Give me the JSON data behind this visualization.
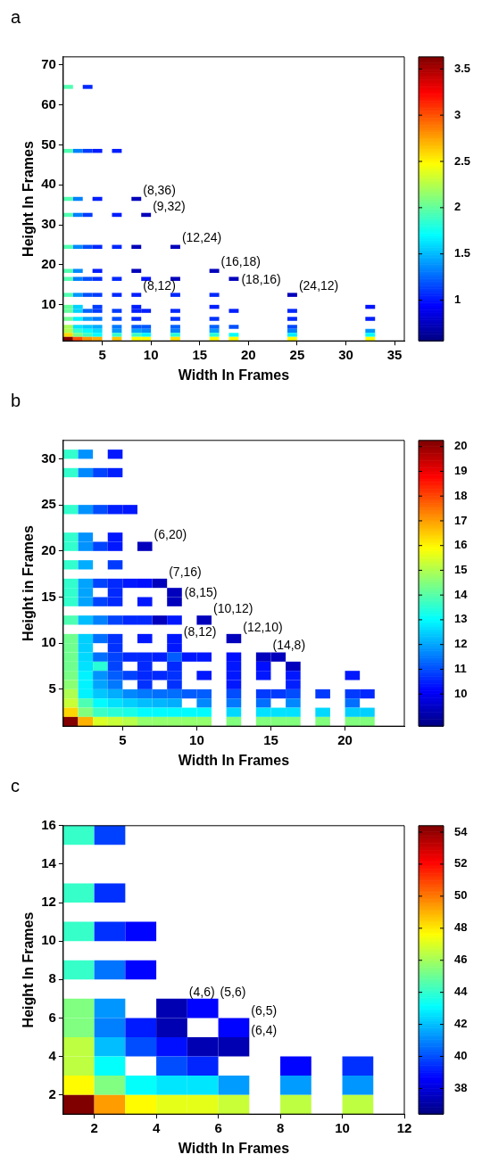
{
  "chart_data": [
    {
      "type": "scatter",
      "marker": "square",
      "title": "a",
      "xlabel": "Width In Frames",
      "ylabel": "Height In Frames",
      "xlim": [
        1,
        36
      ],
      "xticks": [
        5,
        10,
        15,
        20,
        25,
        30,
        35
      ],
      "ylim": [
        1,
        72
      ],
      "yticks": [
        10,
        20,
        30,
        40,
        50,
        60,
        70
      ],
      "clim": [
        0.56,
        3.63
      ],
      "cticks": [
        1,
        1.5,
        2,
        2.5,
        3,
        3.5
      ],
      "x": [
        1.5,
        3.5,
        1.5,
        2.5,
        3.5,
        4.5,
        6.5,
        1.5,
        2.5,
        4.5,
        8.5,
        1.5,
        2.5,
        3.5,
        6.5,
        9.5,
        1.5,
        2.5,
        3.5,
        4.5,
        6.5,
        8.5,
        12.5,
        1.5,
        2.5,
        4.5,
        8.5,
        16.5,
        1.5,
        2.5,
        3.5,
        4.5,
        6.5,
        9.5,
        12.5,
        18.5,
        1.5,
        2.5,
        3.5,
        4.5,
        6.5,
        8.5,
        12.5,
        16.5,
        24.5,
        1.5,
        2.5,
        4.5,
        8.5,
        16.5,
        32.5,
        1.5,
        2.5,
        3.5,
        4.5,
        6.5,
        8.5,
        9.5,
        12.5,
        18.5,
        24.5,
        1.5,
        2.5,
        3.5,
        4.5,
        6.5,
        8.5,
        12.5,
        16.5,
        24.5,
        32.5,
        1.5,
        2.5,
        3.5,
        4.5,
        6.5,
        8.5,
        9.5,
        12.5,
        16.5,
        18.5,
        24.5,
        1.5,
        2.5,
        3.5,
        4.5,
        6.5,
        8.5,
        9.5,
        12.5,
        16.5,
        24.5,
        32.5,
        1.5,
        2.5,
        3.5,
        4.5,
        6.5,
        8.5,
        9.5,
        12.5,
        16.5,
        18.5,
        24.5,
        32.5,
        1.5,
        2.5,
        3.5,
        4.5,
        6.5,
        8.5,
        9.5,
        12.5,
        16.5,
        18.5,
        24.5,
        32.5
      ],
      "values": [
        64.5,
        64.5,
        48.5,
        48.5,
        48.5,
        48.5,
        48.5,
        36.5,
        36.5,
        36.5,
        36.5,
        32.5,
        32.5,
        32.5,
        32.5,
        32.5,
        24.5,
        24.5,
        24.5,
        24.5,
        24.5,
        24.5,
        24.5,
        18.5,
        18.5,
        18.5,
        18.5,
        18.5,
        16.5,
        16.5,
        16.5,
        16.5,
        16.5,
        16.5,
        16.5,
        16.5,
        12.5,
        12.5,
        12.5,
        12.5,
        12.5,
        12.5,
        12.5,
        12.5,
        12.5,
        9.5,
        9.5,
        9.5,
        9.5,
        9.5,
        9.5,
        8.5,
        8.5,
        8.5,
        8.5,
        8.5,
        8.5,
        8.5,
        8.5,
        8.5,
        8.5,
        6.5,
        6.5,
        6.5,
        6.5,
        6.5,
        6.5,
        6.5,
        6.5,
        6.5,
        6.5,
        4.5,
        4.5,
        4.5,
        4.5,
        4.5,
        4.5,
        4.5,
        4.5,
        4.5,
        4.5,
        4.5,
        3.5,
        3.5,
        3.5,
        3.5,
        3.5,
        3.5,
        3.5,
        3.5,
        3.5,
        3.5,
        3.5,
        2.5,
        2.5,
        2.5,
        2.5,
        2.5,
        2.5,
        2.5,
        2.5,
        2.5,
        2.5,
        2.5,
        2.5,
        1.5,
        1.5,
        1.5,
        1.5,
        1.5,
        1.5,
        1.5,
        1.5,
        1.5,
        1.5,
        1.5,
        1.5
      ],
      "cvalues": [
        1.95,
        1.06,
        1.95,
        1.33,
        1.12,
        1.03,
        1.03,
        1.95,
        1.33,
        1.03,
        0.74,
        1.95,
        1.33,
        1.12,
        1.03,
        0.74,
        1.95,
        1.36,
        1.18,
        1.06,
        1.06,
        0.74,
        0.74,
        1.95,
        1.36,
        1.03,
        0.74,
        0.74,
        1.95,
        1.33,
        1.18,
        1.09,
        1.06,
        1.0,
        0.74,
        0.74,
        1.95,
        1.4,
        1.18,
        1.12,
        1.06,
        1.03,
        1.06,
        1.06,
        0.74,
        2.01,
        1.58,
        1.12,
        1.03,
        1.03,
        1.0,
        2.01,
        1.58,
        1.24,
        1.12,
        1.12,
        1.03,
        1.03,
        1.06,
        1.03,
        1.06,
        2.04,
        1.67,
        1.43,
        1.31,
        1.18,
        1.06,
        1.09,
        1.09,
        1.06,
        1.03,
        2.22,
        1.63,
        1.55,
        1.46,
        1.31,
        1.21,
        1.21,
        1.24,
        1.24,
        1.18,
        1.16,
        2.25,
        1.86,
        1.7,
        1.61,
        1.4,
        1.43,
        1.36,
        1.33,
        1.4,
        1.33,
        1.4,
        2.59,
        2.07,
        1.89,
        1.71,
        1.86,
        1.89,
        1.7,
        1.83,
        1.83,
        1.73,
        1.67,
        1.71,
        3.63,
        3.01,
        2.8,
        2.73,
        2.65,
        2.48,
        2.48,
        2.56,
        2.48,
        2.48,
        2.48,
        2.48
      ],
      "annotations": [
        {
          "text": "(8,36)",
          "x": 8.5,
          "y": 36.5
        },
        {
          "text": "(9,32)",
          "x": 9.5,
          "y": 32.5
        },
        {
          "text": "(12,24)",
          "x": 12.5,
          "y": 24.5
        },
        {
          "text": "(16,18)",
          "x": 16.5,
          "y": 18.5
        },
        {
          "text": "(18,16)",
          "x": 18.5,
          "y": 16.5
        },
        {
          "text": "(24,12)",
          "x": 24.5,
          "y": 12.5
        },
        {
          "text": "(8,12)",
          "x": 8.5,
          "y": 12.5
        }
      ]
    },
    {
      "type": "scatter",
      "marker": "square",
      "title": "b",
      "xlabel": "Width In Frames",
      "ylabel": "Height in Frames",
      "xlim": [
        1,
        24
      ],
      "xticks": [
        5,
        10,
        15,
        20
      ],
      "ylim": [
        1,
        32
      ],
      "yticks": [
        5,
        10,
        15,
        20,
        25,
        30
      ],
      "clim": [
        8.7,
        20.25
      ],
      "cticks": [
        10,
        11,
        12,
        13,
        14,
        15,
        16,
        17,
        18,
        19,
        20
      ],
      "x": [
        1.5,
        2.5,
        4.5,
        1.5,
        2.5,
        3.5,
        4.5,
        1.5,
        2.5,
        3.5,
        4.5,
        5.5,
        1.5,
        2.5,
        4.5,
        1.5,
        2.5,
        3.5,
        4.5,
        6.5,
        1.5,
        2.5,
        4.5,
        1.5,
        2.5,
        3.5,
        4.5,
        5.5,
        6.5,
        7.5,
        1.5,
        2.5,
        4.5,
        8.5,
        1.5,
        2.5,
        3.5,
        4.5,
        6.5,
        8.5,
        1.5,
        2.5,
        3.5,
        4.5,
        5.5,
        6.5,
        7.5,
        8.5,
        10.5,
        1.5,
        2.5,
        3.5,
        4.5,
        6.5,
        8.5,
        12.5,
        1.5,
        2.5,
        4.5,
        8.5,
        1.5,
        2.5,
        3.5,
        4.5,
        5.5,
        6.5,
        7.5,
        8.5,
        9.5,
        10.5,
        12.5,
        14.5,
        15.5,
        1.5,
        2.5,
        3.5,
        4.5,
        6.5,
        8.5,
        12.5,
        14.5,
        16.5,
        1.5,
        2.5,
        3.5,
        4.5,
        5.5,
        6.5,
        7.5,
        8.5,
        10.5,
        12.5,
        14.5,
        16.5,
        20.5,
        1.5,
        2.5,
        3.5,
        4.5,
        6.5,
        8.5,
        12.5,
        16.5,
        1.5,
        2.5,
        3.5,
        4.5,
        5.5,
        6.5,
        7.5,
        8.5,
        9.5,
        10.5,
        12.5,
        14.5,
        15.5,
        16.5,
        18.5,
        20.5,
        21.5,
        1.5,
        2.5,
        3.5,
        4.5,
        5.5,
        6.5,
        7.5,
        8.5,
        10.5,
        12.5,
        14.5,
        16.5,
        20.5,
        1.5,
        2.5,
        3.5,
        4.5,
        5.5,
        6.5,
        7.5,
        8.5,
        9.5,
        10.5,
        12.5,
        14.5,
        15.5,
        16.5,
        18.5,
        20.5,
        21.5,
        1.5,
        2.5,
        3.5,
        4.5,
        5.5,
        6.5,
        7.5,
        8.5,
        9.5,
        10.5,
        12.5,
        14.5,
        15.5,
        16.5,
        18.5,
        20.5,
        21.5
      ],
      "values": [
        30.5,
        30.5,
        30.5,
        28.5,
        28.5,
        28.5,
        28.5,
        24.5,
        24.5,
        24.5,
        24.5,
        24.5,
        21.5,
        21.5,
        21.5,
        20.5,
        20.5,
        20.5,
        20.5,
        20.5,
        18.5,
        18.5,
        18.5,
        16.5,
        16.5,
        16.5,
        16.5,
        16.5,
        16.5,
        16.5,
        15.5,
        15.5,
        15.5,
        15.5,
        14.5,
        14.5,
        14.5,
        14.5,
        14.5,
        14.5,
        12.5,
        12.5,
        12.5,
        12.5,
        12.5,
        12.5,
        12.5,
        12.5,
        12.5,
        10.5,
        10.5,
        10.5,
        10.5,
        10.5,
        10.5,
        10.5,
        9.5,
        9.5,
        9.5,
        9.5,
        8.5,
        8.5,
        8.5,
        8.5,
        8.5,
        8.5,
        8.5,
        8.5,
        8.5,
        8.5,
        8.5,
        8.5,
        8.5,
        7.5,
        7.5,
        7.5,
        7.5,
        7.5,
        7.5,
        7.5,
        7.5,
        7.5,
        6.5,
        6.5,
        6.5,
        6.5,
        6.5,
        6.5,
        6.5,
        6.5,
        6.5,
        6.5,
        6.5,
        6.5,
        6.5,
        5.5,
        5.5,
        5.5,
        5.5,
        5.5,
        5.5,
        5.5,
        5.5,
        4.5,
        4.5,
        4.5,
        4.5,
        4.5,
        4.5,
        4.5,
        4.5,
        4.5,
        4.5,
        4.5,
        4.5,
        4.5,
        4.5,
        4.5,
        4.5,
        4.5,
        3.5,
        3.5,
        3.5,
        3.5,
        3.5,
        3.5,
        3.5,
        3.5,
        3.5,
        3.5,
        3.5,
        3.5,
        3.5,
        2.5,
        2.5,
        2.5,
        2.5,
        2.5,
        2.5,
        2.5,
        2.5,
        2.5,
        2.5,
        2.5,
        2.5,
        2.5,
        2.5,
        2.5,
        2.5,
        2.5,
        1.5,
        1.5,
        1.5,
        1.5,
        1.5,
        1.5,
        1.5,
        1.5,
        1.5,
        1.5,
        1.5,
        1.5,
        1.5,
        1.5,
        1.5,
        1.5,
        1.5
      ],
      "cvalues": [
        13.6,
        11.8,
        10.4,
        13.6,
        11.7,
        10.9,
        10.5,
        13.6,
        11.8,
        11.0,
        10.5,
        10.4,
        13.6,
        11.8,
        10.4,
        13.6,
        11.8,
        10.9,
        10.4,
        9.4,
        13.6,
        12.1,
        10.8,
        13.6,
        12.0,
        10.9,
        10.6,
        10.4,
        10.3,
        9.4,
        13.6,
        12.0,
        10.6,
        9.4,
        13.6,
        12.0,
        10.9,
        10.6,
        10.4,
        9.4,
        13.9,
        12.3,
        11.6,
        10.9,
        10.6,
        10.6,
        9.4,
        10.4,
        9.4,
        14.3,
        12.5,
        11.4,
        10.7,
        10.4,
        10.4,
        9.4,
        14.3,
        12.5,
        10.7,
        10.4,
        14.3,
        12.6,
        11.4,
        10.9,
        10.6,
        10.6,
        10.5,
        11.2,
        10.4,
        10.4,
        10.3,
        9.4,
        9.4,
        14.3,
        12.7,
        13.5,
        10.9,
        10.6,
        10.6,
        10.4,
        10.3,
        9.4,
        14.4,
        12.9,
        11.8,
        11.2,
        10.9,
        10.6,
        10.6,
        10.7,
        10.4,
        10.4,
        10.4,
        10.4,
        10.4,
        14.6,
        12.9,
        12.0,
        11.5,
        10.7,
        10.7,
        10.4,
        10.5,
        15.0,
        12.9,
        12.4,
        12.1,
        11.7,
        11.5,
        11.4,
        11.4,
        11.2,
        11.2,
        11.0,
        10.8,
        10.8,
        11.0,
        10.8,
        10.8,
        10.6,
        15.3,
        13.9,
        13.0,
        12.7,
        12.5,
        12.3,
        12.2,
        12.1,
        11.7,
        11.5,
        11.4,
        11.7,
        11.4,
        16.4,
        14.5,
        13.7,
        13.5,
        13.3,
        13.0,
        13.0,
        13.0,
        13.0,
        13.0,
        12.6,
        12.7,
        12.7,
        12.7,
        12.6,
        12.5,
        12.5,
        20.2,
        16.8,
        15.5,
        15.3,
        15.1,
        14.7,
        14.7,
        14.7,
        14.7,
        14.7,
        14.5,
        14.5,
        14.5,
        14.5,
        14.5,
        14.5,
        14.5
      ],
      "annotations": [
        {
          "text": "(6,20)",
          "x": 6.5,
          "y": 20.5
        },
        {
          "text": "(7,16)",
          "x": 7.5,
          "y": 16.5
        },
        {
          "text": "(8,15)",
          "x": 8.5,
          "y": 15.5
        },
        {
          "text": "(10,12)",
          "x": 10.5,
          "y": 12.5
        },
        {
          "text": "(12,10)",
          "x": 12.5,
          "y": 10.5
        },
        {
          "text": "(14,8)",
          "x": 14.5,
          "y": 8.5
        },
        {
          "text": "(8,12)",
          "x": 8.5,
          "y": 12.5
        }
      ]
    },
    {
      "type": "scatter",
      "marker": "square",
      "title": "c",
      "xlabel": "Width In Frames",
      "ylabel": "Height In Frames",
      "xlim": [
        1,
        12
      ],
      "xticks": [
        2,
        4,
        6,
        8,
        10,
        12
      ],
      "ylim": [
        1,
        16
      ],
      "yticks": [
        2,
        4,
        6,
        8,
        10,
        12,
        14,
        16
      ],
      "clim": [
        36.4,
        54.4
      ],
      "cticks": [
        38,
        40,
        42,
        44,
        46,
        48,
        50,
        52,
        54
      ],
      "x": [
        1.5,
        2.5,
        1.5,
        2.5,
        1.5,
        2.5,
        3.5,
        1.5,
        2.5,
        3.5,
        1.5,
        2.5,
        4.5,
        5.5,
        1.5,
        2.5,
        3.5,
        4.5,
        6.5,
        1.5,
        2.5,
        3.5,
        4.5,
        5.5,
        6.5,
        1.5,
        2.5,
        4.5,
        5.5,
        8.5,
        10.5,
        1.5,
        2.5,
        3.5,
        4.5,
        5.5,
        6.5,
        8.5,
        10.5,
        1.5,
        2.5,
        3.5,
        4.5,
        5.5,
        6.5,
        8.5,
        10.5
      ],
      "values": [
        15.5,
        15.5,
        12.5,
        12.5,
        10.5,
        10.5,
        10.5,
        8.5,
        8.5,
        8.5,
        6.5,
        6.5,
        6.5,
        6.5,
        5.5,
        5.5,
        5.5,
        5.5,
        5.5,
        4.5,
        4.5,
        4.5,
        4.5,
        4.5,
        4.5,
        3.5,
        3.5,
        3.5,
        3.5,
        3.5,
        3.5,
        2.5,
        2.5,
        2.5,
        2.5,
        2.5,
        2.5,
        2.5,
        2.5,
        1.5,
        1.5,
        1.5,
        1.5,
        1.5,
        1.5,
        1.5,
        1.5
      ],
      "cvalues": [
        44.1,
        39.8,
        44.1,
        39.5,
        44.1,
        39.5,
        38.7,
        44.1,
        40.7,
        38.7,
        45.4,
        41.3,
        37.3,
        38.7,
        45.4,
        40.9,
        39.1,
        37.3,
        38.7,
        46.5,
        42.0,
        40.0,
        38.9,
        37.3,
        37.3,
        46.5,
        43.2,
        40.0,
        39.3,
        38.7,
        39.5,
        47.7,
        45.4,
        43.2,
        42.7,
        42.7,
        41.4,
        41.4,
        41.3,
        54.4,
        49.4,
        47.7,
        47.2,
        47.2,
        46.7,
        46.5,
        46.5
      ],
      "annotations": [
        {
          "text": "(4,6)",
          "x": 4.5,
          "y": 6.5
        },
        {
          "text": "(5,6)",
          "x": 5.5,
          "y": 6.5
        },
        {
          "text": "(6,5)",
          "x": 6.5,
          "y": 5.5
        },
        {
          "text": "(6,4)",
          "x": 6.5,
          "y": 4.5
        }
      ]
    }
  ]
}
